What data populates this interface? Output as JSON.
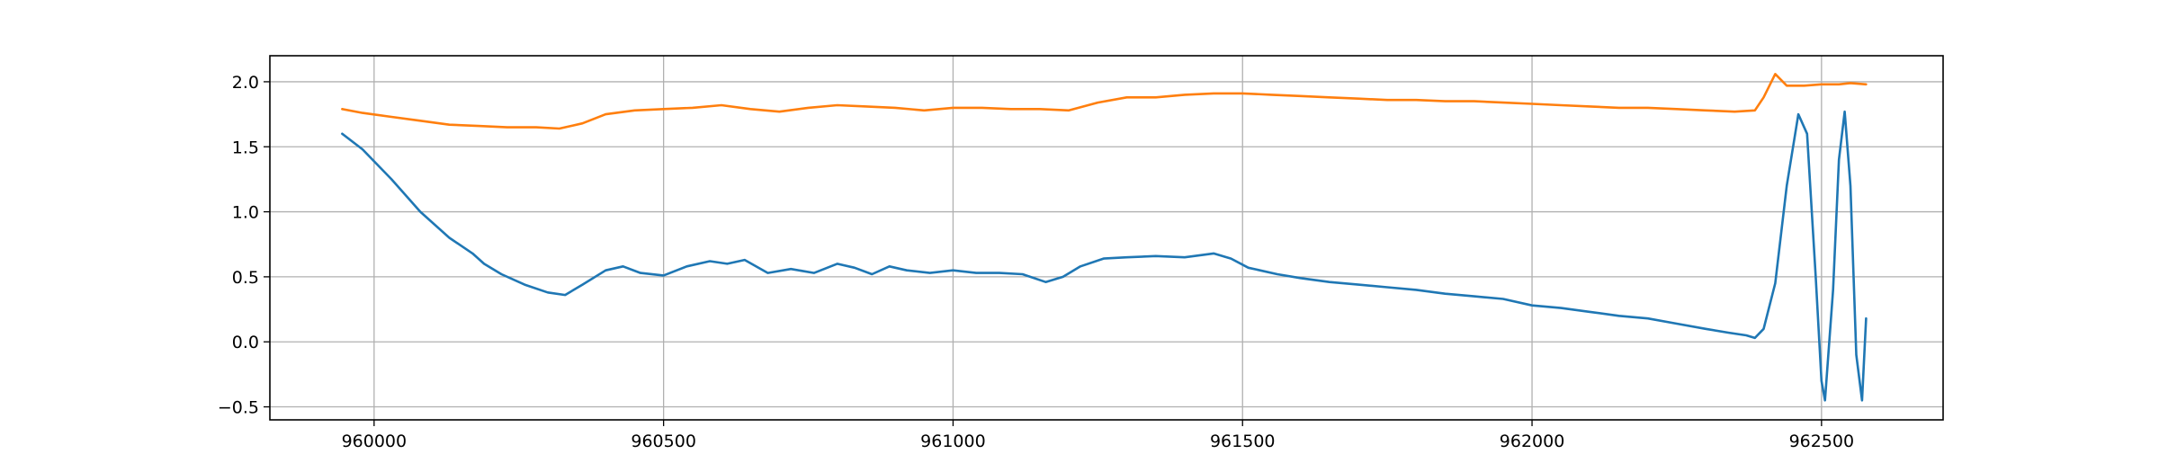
{
  "chart_data": {
    "type": "line",
    "title": "",
    "xlabel": "",
    "ylabel": "",
    "xlim": [
      959820,
      962710
    ],
    "ylim": [
      -0.6,
      2.2
    ],
    "x_ticks": [
      960000,
      960500,
      961000,
      961500,
      962000,
      962500
    ],
    "x_tick_labels": [
      "960000",
      "960500",
      "961000",
      "961500",
      "962000",
      "962500"
    ],
    "y_ticks": [
      2.0,
      1.5,
      1.0,
      0.5,
      0.0,
      -0.5
    ],
    "y_tick_labels": [
      "2.0",
      "1.5",
      "1.0",
      "0.5",
      "0.0",
      "−0.5"
    ],
    "grid": true,
    "legend": "none",
    "series": [
      {
        "color": "#1f77b4",
        "x": [
          959945,
          959980,
          960030,
          960080,
          960130,
          960170,
          960190,
          960220,
          960260,
          960300,
          960330,
          960360,
          960400,
          960430,
          960460,
          960500,
          960540,
          960580,
          960610,
          960640,
          960680,
          960720,
          960760,
          960800,
          960830,
          960860,
          960890,
          960920,
          960960,
          961000,
          961040,
          961080,
          961120,
          961160,
          961190,
          961220,
          961260,
          961300,
          961350,
          961400,
          961450,
          961480,
          961510,
          961560,
          961600,
          961650,
          961700,
          961750,
          961800,
          961850,
          961900,
          961950,
          962000,
          962050,
          962100,
          962150,
          962200,
          962250,
          962300,
          962340,
          962370,
          962385,
          962400,
          962420,
          962440,
          962460,
          962475,
          962490,
          962500,
          962506,
          962520,
          962530,
          962540,
          962550,
          962560,
          962570,
          962577
        ],
        "y": [
          1.6,
          1.48,
          1.25,
          1.0,
          0.8,
          0.68,
          0.6,
          0.52,
          0.44,
          0.38,
          0.36,
          0.44,
          0.55,
          0.58,
          0.53,
          0.51,
          0.58,
          0.62,
          0.6,
          0.63,
          0.53,
          0.56,
          0.53,
          0.6,
          0.57,
          0.52,
          0.58,
          0.55,
          0.53,
          0.55,
          0.53,
          0.53,
          0.52,
          0.46,
          0.5,
          0.58,
          0.64,
          0.65,
          0.66,
          0.65,
          0.68,
          0.64,
          0.57,
          0.52,
          0.49,
          0.46,
          0.44,
          0.42,
          0.4,
          0.37,
          0.35,
          0.33,
          0.28,
          0.26,
          0.23,
          0.2,
          0.18,
          0.14,
          0.1,
          0.07,
          0.05,
          0.03,
          0.1,
          0.45,
          1.2,
          1.75,
          1.6,
          0.5,
          -0.3,
          -0.45,
          0.4,
          1.4,
          1.77,
          1.2,
          -0.1,
          -0.45,
          0.18
        ]
      },
      {
        "color": "#ff7f0e",
        "x": [
          959945,
          959980,
          960030,
          960080,
          960130,
          960180,
          960230,
          960280,
          960320,
          960360,
          960400,
          960450,
          960500,
          960550,
          960600,
          960650,
          960700,
          960750,
          960800,
          960850,
          960900,
          960950,
          961000,
          961050,
          961100,
          961150,
          961200,
          961250,
          961300,
          961350,
          961400,
          961450,
          961500,
          961550,
          961600,
          961650,
          961700,
          961750,
          961800,
          961850,
          961900,
          961950,
          962000,
          962050,
          962100,
          962150,
          962200,
          962250,
          962300,
          962350,
          962385,
          962400,
          962420,
          962440,
          962470,
          962500,
          962530,
          962550,
          962577
        ],
        "y": [
          1.79,
          1.76,
          1.73,
          1.7,
          1.67,
          1.66,
          1.65,
          1.65,
          1.64,
          1.68,
          1.75,
          1.78,
          1.79,
          1.8,
          1.82,
          1.79,
          1.77,
          1.8,
          1.82,
          1.81,
          1.8,
          1.78,
          1.8,
          1.8,
          1.79,
          1.79,
          1.78,
          1.84,
          1.88,
          1.88,
          1.9,
          1.91,
          1.91,
          1.9,
          1.89,
          1.88,
          1.87,
          1.86,
          1.86,
          1.85,
          1.85,
          1.84,
          1.83,
          1.82,
          1.81,
          1.8,
          1.8,
          1.79,
          1.78,
          1.77,
          1.78,
          1.88,
          2.06,
          1.97,
          1.97,
          1.98,
          1.98,
          1.99,
          1.98
        ]
      }
    ]
  }
}
